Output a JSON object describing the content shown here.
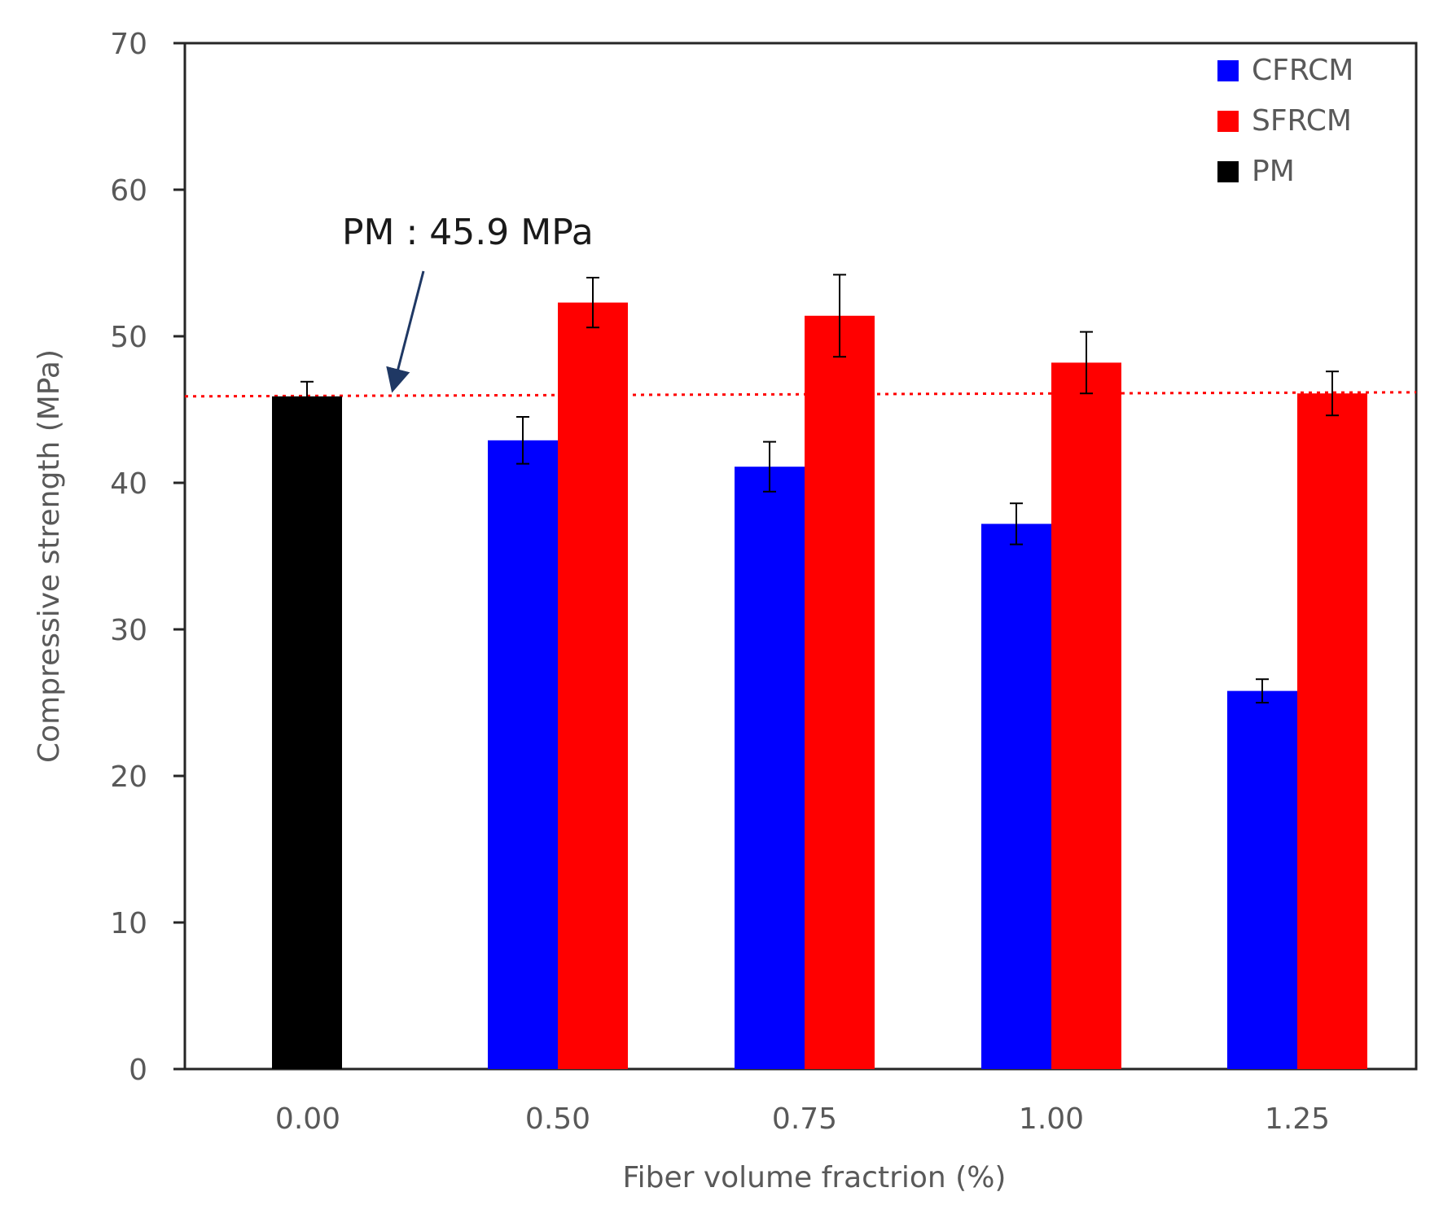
{
  "chart_data": {
    "type": "bar",
    "title": "",
    "xlabel": "Fiber volume fractrion (%)",
    "ylabel": "Compressive strength (MPa)",
    "ylim": [
      0,
      70
    ],
    "yticks": [
      0,
      10,
      20,
      30,
      40,
      50,
      60,
      70
    ],
    "categories": [
      "0.00",
      "0.50",
      "0.75",
      "1.00",
      "1.25"
    ],
    "series": [
      {
        "name": "CFRCM",
        "color": "#0000ff",
        "values": [
          null,
          42.9,
          41.1,
          37.2,
          25.8
        ],
        "errors": [
          null,
          1.6,
          1.7,
          1.4,
          0.8
        ]
      },
      {
        "name": "SFRCM",
        "color": "#ff0000",
        "values": [
          null,
          52.3,
          51.4,
          48.2,
          46.1
        ],
        "errors": [
          null,
          1.7,
          2.8,
          2.1,
          1.5
        ]
      },
      {
        "name": "PM",
        "color": "#000000",
        "values": [
          45.9,
          null,
          null,
          null,
          null
        ],
        "errors": [
          1.0,
          null,
          null,
          null,
          null
        ]
      }
    ],
    "legend": [
      "CFRCM",
      "SFRCM",
      "PM"
    ],
    "legend_position": "top-right",
    "reference_line": {
      "value": 45.9,
      "color": "#ff0000",
      "style": "dotted"
    },
    "annotation": {
      "text": "PM : 45.9 MPa",
      "arrow_color": "#1f3864"
    },
    "grid": false
  }
}
